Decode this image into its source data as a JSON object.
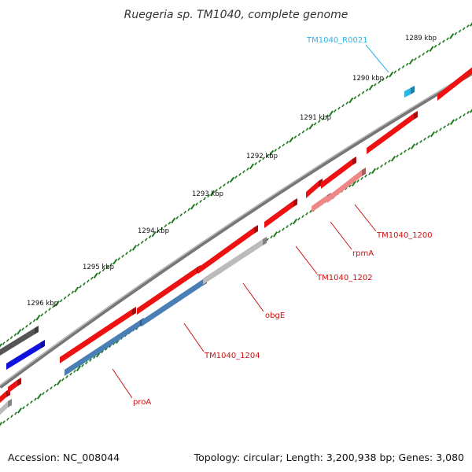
{
  "title": "Ruegeria sp. TM1040, complete genome",
  "footer": {
    "accession": "Accession: NC_008044",
    "summary": "Topology: circular; Length: 3,200,938 bp; Genes: 3,080"
  },
  "colors": {
    "gene_red": "#ee1111",
    "gene_pink": "#ee8888",
    "gene_steel": "#4a7fb5",
    "gene_grey": "#bbbbbb",
    "gene_dark": "#555555",
    "gene_blue": "#1111dd",
    "rna_cyan": "#29b6e6",
    "label_red": "#cc1111",
    "label_cyan": "#29b6e6",
    "backbone": "#777777",
    "ticks": "#1b7a1b"
  },
  "scale_labels": [
    "1289 kbp",
    "1290 kbp",
    "1291 kbp",
    "1292 kbp",
    "1293 kbp",
    "1294 kbp",
    "1295 kbp",
    "1296 kbp"
  ],
  "gene_labels": [
    {
      "name": "TM1040_R0021",
      "color": "cyan"
    },
    {
      "name": "TM1040_1200",
      "color": "red"
    },
    {
      "name": "rpmA",
      "color": "red"
    },
    {
      "name": "TM1040_1202",
      "color": "red"
    },
    {
      "name": "obgE",
      "color": "red"
    },
    {
      "name": "TM1040_1204",
      "color": "red"
    },
    {
      "name": "proA",
      "color": "red"
    }
  ]
}
